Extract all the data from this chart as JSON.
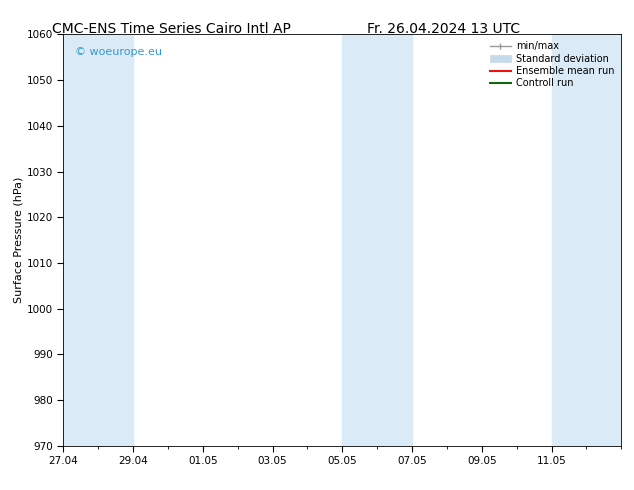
{
  "title_left": "CMC-ENS Time Series Cairo Intl AP",
  "title_right": "Fr. 26.04.2024 13 UTC",
  "ylabel": "Surface Pressure (hPa)",
  "ylim": [
    970,
    1060
  ],
  "yticks": [
    970,
    980,
    990,
    1000,
    1010,
    1020,
    1030,
    1040,
    1050,
    1060
  ],
  "xlim": [
    0,
    16
  ],
  "xtick_positions": [
    0,
    2,
    4,
    6,
    8,
    10,
    12,
    14
  ],
  "xtick_labels": [
    "27.04",
    "29.04",
    "01.05",
    "03.05",
    "05.05",
    "07.05",
    "09.05",
    "11.05"
  ],
  "shaded_bands": [
    {
      "start": 0,
      "end": 2
    },
    {
      "start": 8,
      "end": 10
    },
    {
      "start": 14,
      "end": 16
    }
  ],
  "shade_color": "#daeaf7",
  "watermark_text": "© woeurope.eu",
  "watermark_color": "#3399cc",
  "legend_entries": [
    {
      "label": "min/max",
      "color": "#999999",
      "lw": 1.0
    },
    {
      "label": "Standard deviation",
      "color": "#c5daea",
      "lw": 6
    },
    {
      "label": "Ensemble mean run",
      "color": "#ee1111",
      "lw": 1.5
    },
    {
      "label": "Controll run",
      "color": "#116611",
      "lw": 1.5
    }
  ],
  "bg_color": "#ffffff",
  "title_fontsize": 10,
  "ylabel_fontsize": 8,
  "tick_fontsize": 7.5,
  "watermark_fontsize": 8,
  "legend_fontsize": 7
}
